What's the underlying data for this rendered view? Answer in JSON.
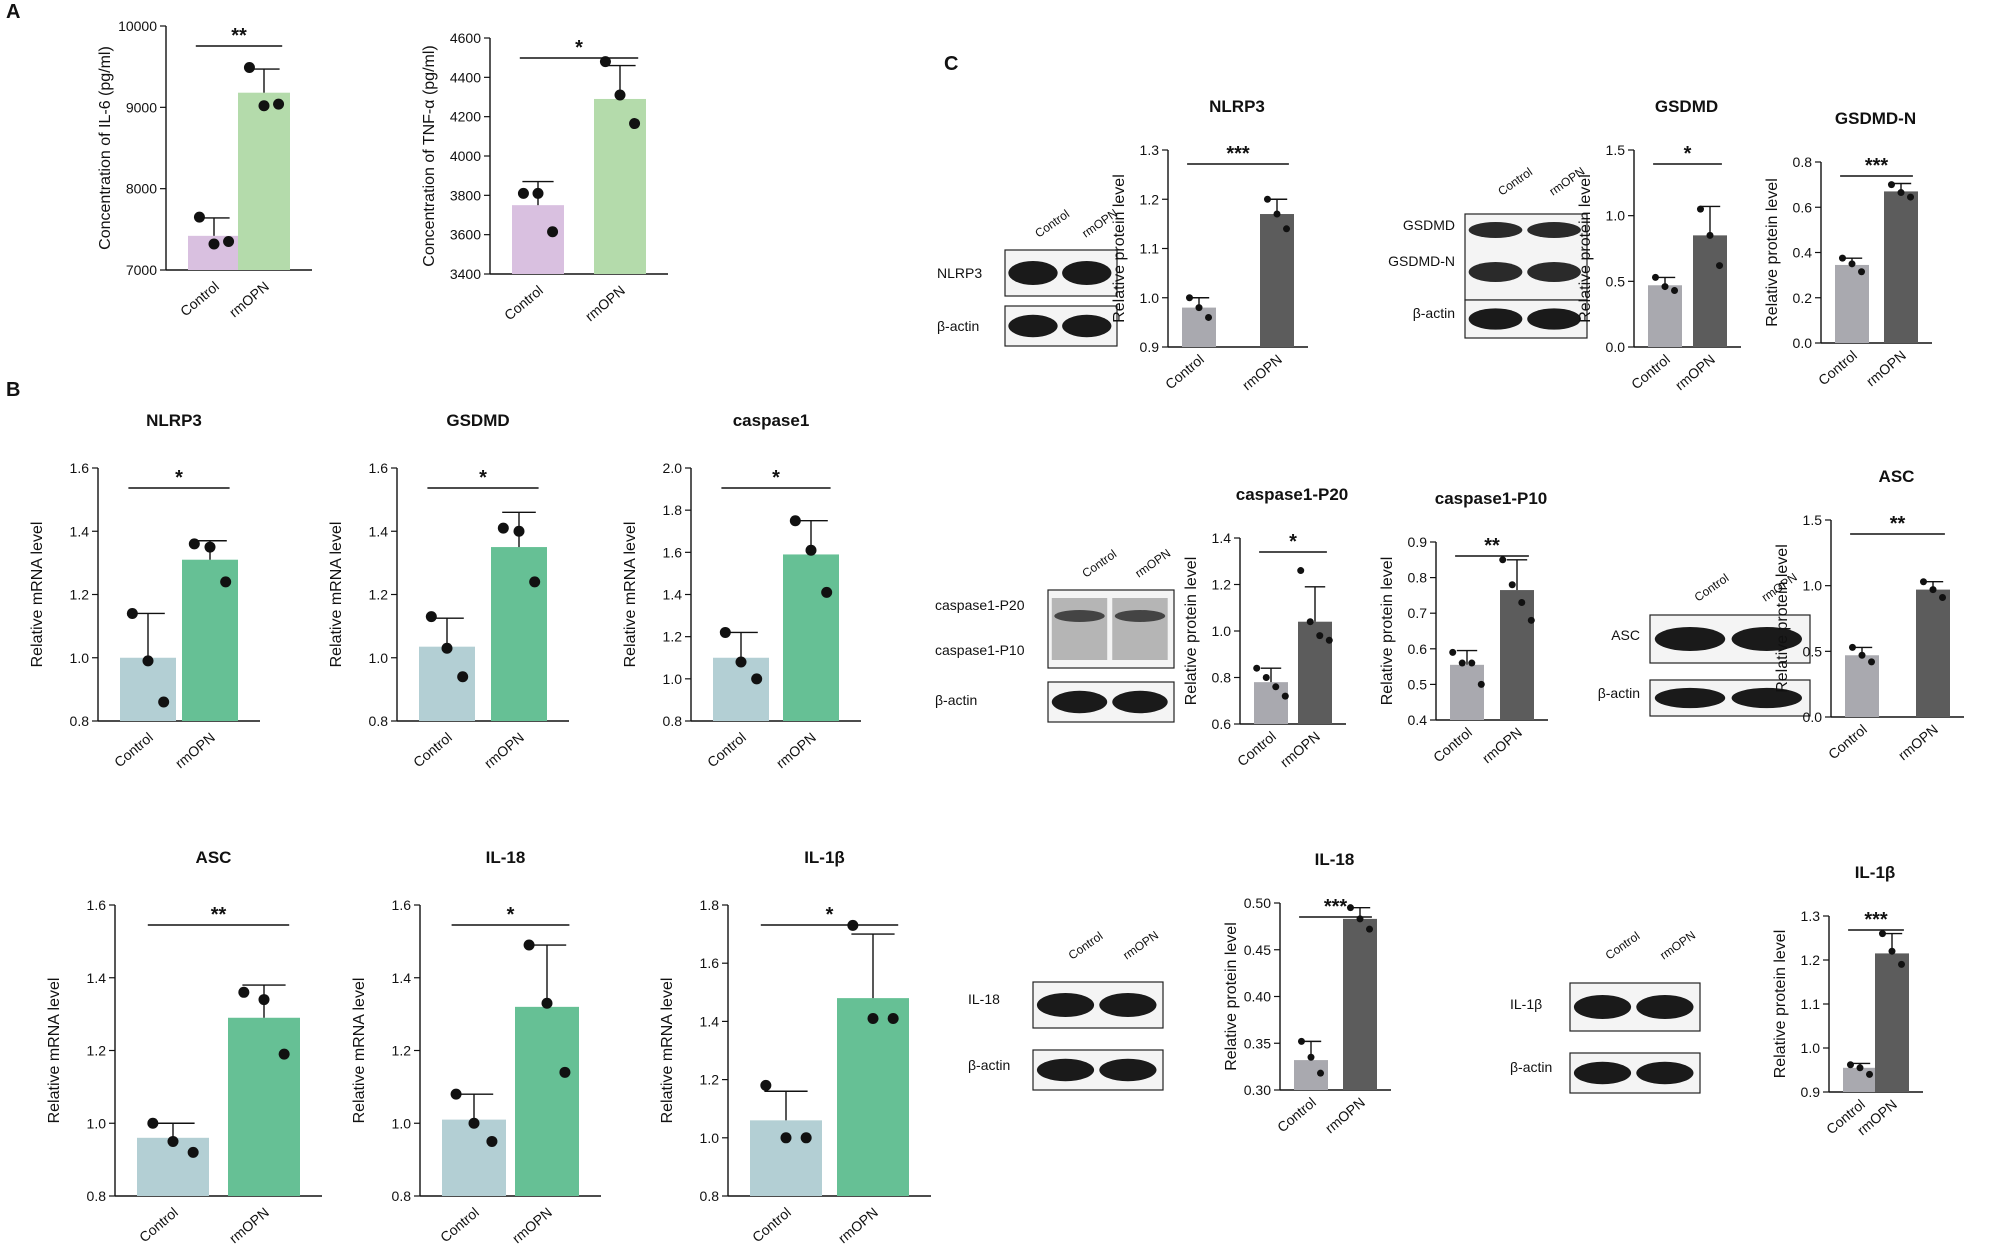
{
  "panels": [
    {
      "label": "A"
    },
    {
      "label": "B"
    },
    {
      "label": "C"
    }
  ],
  "chart_data": [
    {
      "type": "bar",
      "panel": "A",
      "title": "",
      "categories": [
        "Control",
        "rmOPN"
      ],
      "values": [
        7420,
        9180
      ],
      "errors": [
        220,
        290
      ],
      "points": [
        [
          7650,
          7320,
          7350
        ],
        [
          9490,
          9020,
          9040
        ]
      ],
      "ylabel": "Concentration of IL-6 (pg/ml)",
      "ylim": [
        7000,
        10000
      ],
      "yticks": [
        7000,
        8000,
        9000,
        10000
      ],
      "tick_labels": [
        "7000",
        "8000",
        "9000",
        "10000"
      ],
      "significance": "**",
      "colors": [
        "#d9c0e0",
        "#b4dbab"
      ]
    },
    {
      "type": "bar",
      "panel": "A",
      "title": "",
      "categories": [
        "Control",
        "rmOPN"
      ],
      "values": [
        3750,
        4290
      ],
      "errors": [
        120,
        170
      ],
      "points": [
        [
          3810,
          3810,
          3615
        ],
        [
          4480,
          4310,
          4165
        ]
      ],
      "ylabel": "Concentration of TNF-α (pg/ml)",
      "ylim": [
        3400,
        4600
      ],
      "yticks": [
        3400,
        3600,
        3800,
        4000,
        4200,
        4400,
        4600
      ],
      "tick_labels": [
        "3400",
        "3600",
        "3800",
        "4000",
        "4200",
        "4400",
        "4600"
      ],
      "significance": "*",
      "colors": [
        "#d9c0e0",
        "#b4dbab"
      ]
    },
    {
      "type": "bar",
      "panel": "B",
      "title": "NLRP3",
      "categories": [
        "Control",
        "rmOPN"
      ],
      "values": [
        1.0,
        1.31
      ],
      "errors": [
        0.14,
        0.06
      ],
      "points": [
        [
          1.14,
          0.99,
          0.86
        ],
        [
          1.36,
          1.35,
          1.24
        ]
      ],
      "ylabel": "Relative mRNA level",
      "ylim": [
        0.8,
        1.6
      ],
      "yticks": [
        0.8,
        1.0,
        1.2,
        1.4,
        1.6
      ],
      "tick_labels": [
        "0.8",
        "1.0",
        "1.2",
        "1.4",
        "1.6"
      ],
      "significance": "*",
      "colors": [
        "#b3cfd4",
        "#66c095"
      ]
    },
    {
      "type": "bar",
      "panel": "B",
      "title": "GSDMD",
      "categories": [
        "Control",
        "rmOPN"
      ],
      "values": [
        1.035,
        1.35
      ],
      "errors": [
        0.09,
        0.11
      ],
      "points": [
        [
          1.13,
          1.03,
          0.94
        ],
        [
          1.41,
          1.4,
          1.24
        ]
      ],
      "ylabel": "Relative mRNA level",
      "ylim": [
        0.8,
        1.6
      ],
      "yticks": [
        0.8,
        1.0,
        1.2,
        1.4,
        1.6
      ],
      "tick_labels": [
        "0.8",
        "1.0",
        "1.2",
        "1.4",
        "1.6"
      ],
      "significance": "*",
      "colors": [
        "#b3cfd4",
        "#66c095"
      ]
    },
    {
      "type": "bar",
      "panel": "B",
      "title": "caspase1",
      "categories": [
        "Control",
        "rmOPN"
      ],
      "values": [
        1.1,
        1.59
      ],
      "errors": [
        0.12,
        0.16
      ],
      "points": [
        [
          1.22,
          1.08,
          1.0
        ],
        [
          1.75,
          1.61,
          1.41
        ]
      ],
      "ylabel": "Relative mRNA level",
      "ylim": [
        0.8,
        2.0
      ],
      "yticks": [
        0.8,
        1.0,
        1.2,
        1.4,
        1.6,
        1.8,
        2.0
      ],
      "tick_labels": [
        "0.8",
        "1.0",
        "1.2",
        "1.4",
        "1.6",
        "1.8",
        "2.0"
      ],
      "significance": "*",
      "colors": [
        "#b3cfd4",
        "#66c095"
      ]
    },
    {
      "type": "bar",
      "panel": "B",
      "title": "ASC",
      "categories": [
        "Control",
        "rmOPN"
      ],
      "values": [
        0.96,
        1.29
      ],
      "errors": [
        0.04,
        0.09
      ],
      "points": [
        [
          1.0,
          0.95,
          0.92
        ],
        [
          1.36,
          1.34,
          1.19
        ]
      ],
      "ylabel": "Relative mRNA level",
      "ylim": [
        0.8,
        1.6
      ],
      "yticks": [
        0.8,
        1.0,
        1.2,
        1.4,
        1.6
      ],
      "tick_labels": [
        "0.8",
        "1.0",
        "1.2",
        "1.4",
        "1.6"
      ],
      "significance": "**",
      "colors": [
        "#b3cfd4",
        "#66c095"
      ]
    },
    {
      "type": "bar",
      "panel": "B",
      "title": "IL-18",
      "categories": [
        "Control",
        "rmOPN"
      ],
      "values": [
        1.01,
        1.32
      ],
      "errors": [
        0.07,
        0.17
      ],
      "points": [
        [
          1.08,
          1.0,
          0.95
        ],
        [
          1.49,
          1.33,
          1.14
        ]
      ],
      "ylabel": "Relative mRNA level",
      "ylim": [
        0.8,
        1.6
      ],
      "yticks": [
        0.8,
        1.0,
        1.2,
        1.4,
        1.6
      ],
      "tick_labels": [
        "0.8",
        "1.0",
        "1.2",
        "1.4",
        "1.6"
      ],
      "significance": "*",
      "colors": [
        "#b3cfd4",
        "#66c095"
      ]
    },
    {
      "type": "bar",
      "panel": "B",
      "title": "IL-1β",
      "categories": [
        "Control",
        "rmOPN"
      ],
      "values": [
        1.06,
        1.48
      ],
      "errors": [
        0.1,
        0.22
      ],
      "points": [
        [
          1.18,
          1.0,
          1.0
        ],
        [
          1.73,
          1.41,
          1.41
        ]
      ],
      "ylabel": "Relative mRNA level",
      "ylim": [
        0.8,
        1.8
      ],
      "yticks": [
        0.8,
        1.0,
        1.2,
        1.4,
        1.6,
        1.8
      ],
      "tick_labels": [
        "0.8",
        "1.0",
        "1.2",
        "1.4",
        "1.6",
        "1.8"
      ],
      "significance": "*",
      "colors": [
        "#b3cfd4",
        "#66c095"
      ]
    },
    {
      "type": "bar",
      "panel": "C",
      "title": "NLRP3",
      "categories": [
        "Control",
        "rmOPN"
      ],
      "values": [
        0.98,
        1.17
      ],
      "errors": [
        0.02,
        0.03
      ],
      "points": [
        [
          1.0,
          0.98,
          0.96
        ],
        [
          1.2,
          1.17,
          1.14
        ]
      ],
      "ylabel": "Relative protein level",
      "ylim": [
        0.9,
        1.3
      ],
      "yticks": [
        0.9,
        1.0,
        1.1,
        1.2,
        1.3
      ],
      "tick_labels": [
        "0.9",
        "1.0",
        "1.1",
        "1.2",
        "1.3"
      ],
      "significance": "***",
      "colors": [
        "#a9a9af",
        "#5c5c5c"
      ]
    },
    {
      "type": "bar",
      "panel": "C",
      "title": "GSDMD",
      "categories": [
        "Control",
        "rmOPN"
      ],
      "values": [
        0.47,
        0.85
      ],
      "errors": [
        0.06,
        0.22
      ],
      "points": [
        [
          0.53,
          0.46,
          0.43
        ],
        [
          1.05,
          0.85,
          0.62
        ]
      ],
      "ylabel": "Relative protein level",
      "ylim": [
        0,
        1.5
      ],
      "yticks": [
        0,
        0.5,
        1.0,
        1.5
      ],
      "tick_labels": [
        "0.0",
        "0.5",
        "1.0",
        "1.5"
      ],
      "significance": "*",
      "colors": [
        "#a9a9af",
        "#5c5c5c"
      ]
    },
    {
      "type": "bar",
      "panel": "C",
      "title": "GSDMD-N",
      "categories": [
        "Control",
        "rmOPN"
      ],
      "values": [
        0.345,
        0.67
      ],
      "errors": [
        0.03,
        0.035
      ],
      "points": [
        [
          0.375,
          0.35,
          0.315
        ],
        [
          0.7,
          0.665,
          0.645
        ]
      ],
      "ylabel": "Relative protein level",
      "ylim": [
        0,
        0.8
      ],
      "yticks": [
        0,
        0.2,
        0.4,
        0.6,
        0.8
      ],
      "tick_labels": [
        "0.0",
        "0.2",
        "0.4",
        "0.6",
        "0.8"
      ],
      "significance": "***",
      "colors": [
        "#a9a9af",
        "#5c5c5c"
      ]
    },
    {
      "type": "bar",
      "panel": "C",
      "title": "caspase1-P20",
      "categories": [
        "Control",
        "rmOPN"
      ],
      "values": [
        0.78,
        1.04
      ],
      "errors": [
        0.06,
        0.15
      ],
      "points": [
        [
          0.84,
          0.8,
          0.76,
          0.72
        ],
        [
          1.26,
          1.04,
          0.98,
          0.96
        ]
      ],
      "ylabel": "Relative protein level",
      "ylim": [
        0.6,
        1.4
      ],
      "yticks": [
        0.6,
        0.8,
        1.0,
        1.2,
        1.4
      ],
      "tick_labels": [
        "0.6",
        "0.8",
        "1.0",
        "1.2",
        "1.4"
      ],
      "significance": "*",
      "colors": [
        "#a9a9af",
        "#5c5c5c"
      ]
    },
    {
      "type": "bar",
      "panel": "C",
      "title": "caspase1-P10",
      "categories": [
        "Control",
        "rmOPN"
      ],
      "values": [
        0.555,
        0.765
      ],
      "errors": [
        0.04,
        0.085
      ],
      "points": [
        [
          0.59,
          0.56,
          0.56,
          0.5
        ],
        [
          0.85,
          0.78,
          0.73,
          0.68
        ]
      ],
      "ylabel": "Relative protein level",
      "ylim": [
        0.4,
        0.9
      ],
      "yticks": [
        0.4,
        0.5,
        0.6,
        0.7,
        0.8,
        0.9
      ],
      "tick_labels": [
        "0.4",
        "0.5",
        "0.6",
        "0.7",
        "0.8",
        "0.9"
      ],
      "significance": "**",
      "colors": [
        "#a9a9af",
        "#5c5c5c"
      ]
    },
    {
      "type": "bar",
      "panel": "C",
      "title": "ASC",
      "categories": [
        "Control",
        "rmOPN"
      ],
      "values": [
        0.47,
        0.97
      ],
      "errors": [
        0.06,
        0.06
      ],
      "points": [
        [
          0.53,
          0.47,
          0.42
        ],
        [
          1.03,
          0.97,
          0.91
        ]
      ],
      "ylabel": "Relative protein level",
      "ylim": [
        0,
        1.5
      ],
      "yticks": [
        0,
        0.5,
        1.0,
        1.5
      ],
      "tick_labels": [
        "0.0",
        "0.5",
        "1.0",
        "1.5"
      ],
      "significance": "**",
      "colors": [
        "#a9a9af",
        "#5c5c5c"
      ]
    },
    {
      "type": "bar",
      "panel": "C",
      "title": "IL-18",
      "categories": [
        "Control",
        "rmOPN"
      ],
      "values": [
        0.332,
        0.483
      ],
      "errors": [
        0.02,
        0.012
      ],
      "points": [
        [
          0.352,
          0.335,
          0.318
        ],
        [
          0.495,
          0.483,
          0.472
        ]
      ],
      "ylabel": "Relative protein level",
      "ylim": [
        0.3,
        0.5
      ],
      "yticks": [
        0.3,
        0.35,
        0.4,
        0.45,
        0.5
      ],
      "tick_labels": [
        "0.30",
        "0.35",
        "0.40",
        "0.45",
        "0.50"
      ],
      "significance": "***",
      "colors": [
        "#a9a9af",
        "#5c5c5c"
      ]
    },
    {
      "type": "bar",
      "panel": "C",
      "title": "IL-1β",
      "categories": [
        "Control",
        "rmOPN"
      ],
      "values": [
        0.955,
        1.215
      ],
      "errors": [
        0.01,
        0.045
      ],
      "points": [
        [
          0.962,
          0.955,
          0.94
        ],
        [
          1.26,
          1.22,
          1.19
        ]
      ],
      "ylabel": "Relative protein level",
      "ylim": [
        0.9,
        1.3
      ],
      "yticks": [
        0.9,
        1.0,
        1.1,
        1.2,
        1.3
      ],
      "tick_labels": [
        "0.9",
        "1.0",
        "1.1",
        "1.2",
        "1.3"
      ],
      "significance": "***",
      "colors": [
        "#a9a9af",
        "#5c5c5c"
      ]
    }
  ],
  "blots": [
    {
      "headers": [
        "Control",
        "rmOPN"
      ],
      "lanes": [
        {
          "name": "NLRP3"
        },
        {
          "name": "β-actin"
        }
      ]
    },
    {
      "headers": [
        "Control",
        "rmOPN"
      ],
      "lanes": [
        {
          "name": "GSDMD"
        },
        {
          "name": "GSDMD-N"
        },
        {
          "name": "β-actin"
        }
      ]
    },
    {
      "headers": [
        "Control",
        "rmOPN"
      ],
      "lanes": [
        {
          "name": "caspase1-P20"
        },
        {
          "name": "caspase1-P10"
        },
        {
          "name": "β-actin"
        }
      ]
    },
    {
      "headers": [
        "Control",
        "rmOPN"
      ],
      "lanes": [
        {
          "name": "ASC"
        },
        {
          "name": "β-actin"
        }
      ]
    },
    {
      "headers": [
        "Control",
        "rmOPN"
      ],
      "lanes": [
        {
          "name": "IL-18"
        },
        {
          "name": "β-actin"
        }
      ]
    },
    {
      "headers": [
        "Control",
        "rmOPN"
      ],
      "lanes": [
        {
          "name": "IL-1β"
        },
        {
          "name": "β-actin"
        }
      ]
    }
  ]
}
